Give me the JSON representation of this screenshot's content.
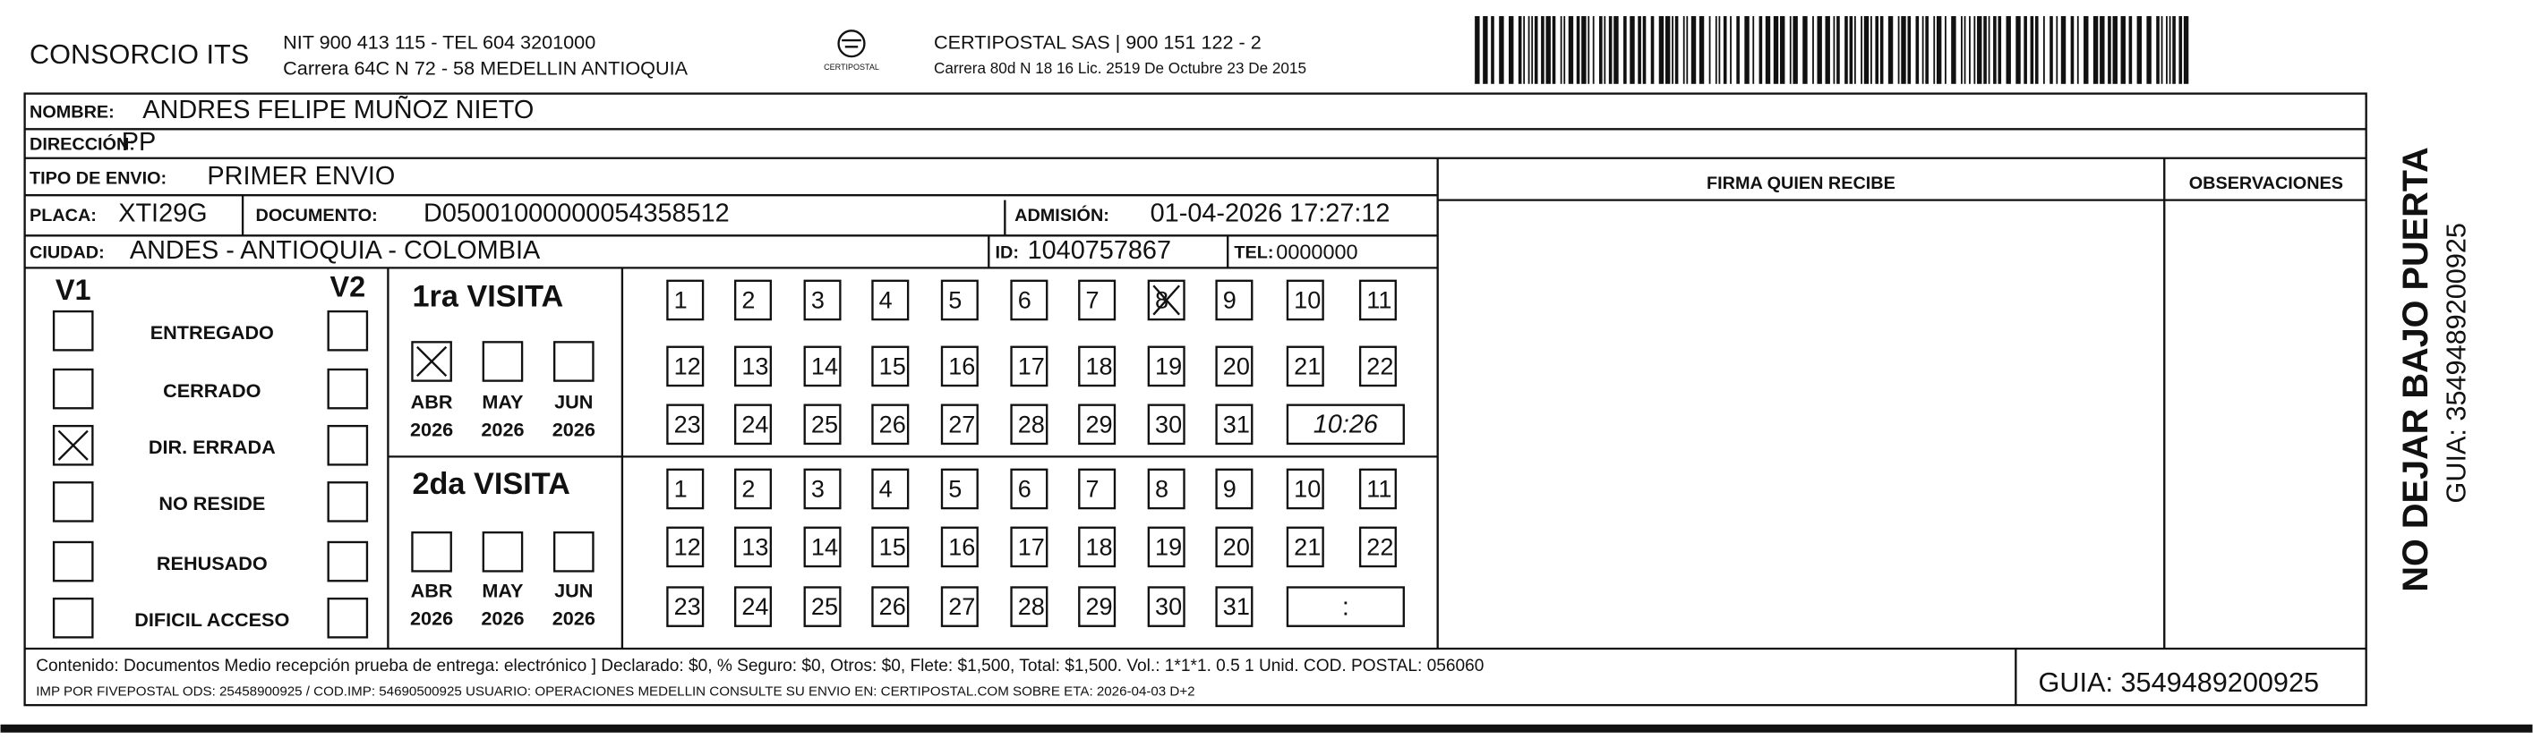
{
  "header": {
    "company": "CONSORCIO ITS",
    "nit": "NIT 900 413 115 - TEL 604 3201000",
    "address": "Carrera 64C N 72 - 58 MEDELLIN ANTIOQUIA",
    "logo_text": "CERTIPOSTAL",
    "courier": "CERTIPOSTAL SAS | 900 151 122 - 2",
    "courier_address": "Carrera 80d N 18 16  Lic. 2519 De Octubre 23 De 2015"
  },
  "fields": {
    "nombre": {
      "label": "NOMBRE:",
      "value": "ANDRES FELIPE MUÑOZ NIETO"
    },
    "direccion": {
      "label": "DIRECCIÓN:",
      "value": "PP"
    },
    "tipo": {
      "label": "TIPO DE ENVIO:",
      "value": "PRIMER ENVIO"
    },
    "placa": {
      "label": "PLACA:",
      "value": "XTI29G"
    },
    "documento": {
      "label": "DOCUMENTO:",
      "value": "D05001000000054358512"
    },
    "admision": {
      "label": "ADMISIÓN:",
      "value": "01-04-2026 17:27:12"
    },
    "ciudad": {
      "label": "CIUDAD:",
      "value": "ANDES - ANTIOQUIA - COLOMBIA"
    },
    "id": {
      "label": "ID:",
      "value": "1040757867"
    },
    "tel": {
      "label": "TEL:",
      "value": "0000000"
    }
  },
  "firma": "FIRMA QUIEN RECIBE",
  "observaciones": "OBSERVACIONES",
  "reasons": {
    "v1": "V1",
    "v2": "V2",
    "items": [
      {
        "label": "ENTREGADO",
        "v1": false,
        "v2": false
      },
      {
        "label": "CERRADO",
        "v1": false,
        "v2": false
      },
      {
        "label": "DIR. ERRADA",
        "v1": true,
        "v2": false
      },
      {
        "label": "NO RESIDE",
        "v1": false,
        "v2": false
      },
      {
        "label": "REHUSADO",
        "v1": false,
        "v2": false
      },
      {
        "label": "DIFICIL ACCESO",
        "v1": false,
        "v2": false
      }
    ]
  },
  "visits": [
    {
      "title": "1ra VISITA",
      "months": [
        {
          "label": "ABR",
          "year": "2026",
          "checked": true
        },
        {
          "label": "MAY",
          "year": "2026",
          "checked": false
        },
        {
          "label": "JUN",
          "year": "2026",
          "checked": false
        }
      ],
      "days": [
        1,
        2,
        3,
        4,
        5,
        6,
        7,
        8,
        9,
        10,
        11,
        12,
        13,
        14,
        15,
        16,
        17,
        18,
        19,
        20,
        21,
        22,
        23,
        24,
        25,
        26,
        27,
        28,
        29,
        30,
        31
      ],
      "marked": [
        8
      ],
      "time": "10:26"
    },
    {
      "title": "2da VISITA",
      "months": [
        {
          "label": "ABR",
          "year": "2026",
          "checked": false
        },
        {
          "label": "MAY",
          "year": "2026",
          "checked": false
        },
        {
          "label": "JUN",
          "year": "2026",
          "checked": false
        }
      ],
      "days": [
        1,
        2,
        3,
        4,
        5,
        6,
        7,
        8,
        9,
        10,
        11,
        12,
        13,
        14,
        15,
        16,
        17,
        18,
        19,
        20,
        21,
        22,
        23,
        24,
        25,
        26,
        27,
        28,
        29,
        30,
        31
      ],
      "marked": [],
      "time": ":"
    }
  ],
  "footer": {
    "contenido": "Contenido: Documentos Medio recepción prueba de entrega: electrónico ] Declarado: $0, % Seguro: $0, Otros: $0, Flete: $1,500, Total: $1,500. Vol.: 1*1*1. 0.5  1 Unid. COD. POSTAL: 056060",
    "imp": "IMP POR FIVEPOSTAL ODS: 25458900925 / COD.IMP: 54690500925 USUARIO: OPERACIONES MEDELLIN CONSULTE SU ENVIO EN: CERTIPOSTAL.COM SOBRE ETA: 2026-04-03 D+2",
    "guia": "GUIA: 3549489200925"
  },
  "side": {
    "warning": "NO DEJAR BAJO PUERTA",
    "guia": "GUIA: 3549489200925"
  }
}
